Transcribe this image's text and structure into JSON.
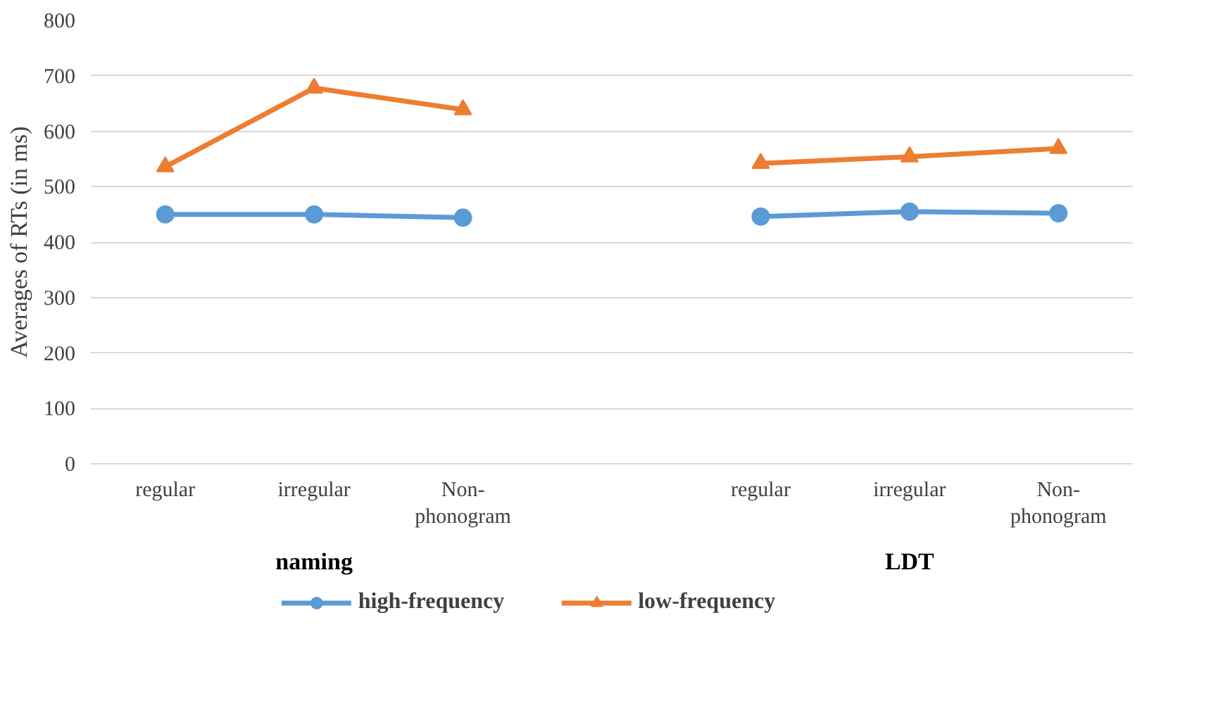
{
  "chart_data": {
    "type": "line",
    "ylabel": "Averages of RTs (in ms)",
    "categories": [
      "regular",
      "irregular",
      "Non-phonogram",
      null,
      "regular",
      "irregular",
      "Non-phonogram"
    ],
    "series": [
      {
        "name": "high-frequency",
        "color": "#5b9bd5",
        "marker": "circle",
        "values": [
          450,
          450,
          444,
          null,
          446,
          455,
          452
        ]
      },
      {
        "name": "low-frequency",
        "color": "#ed7d31",
        "marker": "triangle",
        "values": [
          536,
          678,
          639,
          null,
          542,
          554,
          569
        ]
      }
    ],
    "annotations": [
      "naming",
      "LDT"
    ],
    "ylim": [
      0,
      800
    ],
    "yticks": [
      0,
      100,
      200,
      300,
      400,
      500,
      600,
      700,
      800
    ],
    "grid": "y",
    "legend": "bottom",
    "line_style": "solid"
  }
}
